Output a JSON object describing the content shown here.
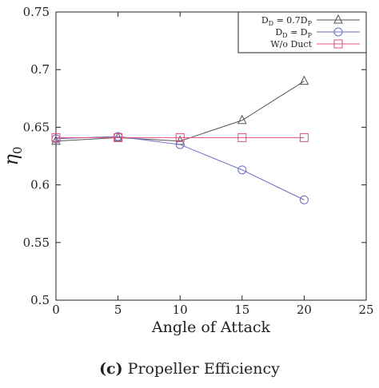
{
  "chart_data": {
    "type": "line",
    "xlabel": "Angle of Attack",
    "ylabel_main": "η",
    "ylabel_sub": "0",
    "xlim": [
      0,
      25
    ],
    "ylim": [
      0.5,
      0.75
    ],
    "xticks": [
      0,
      5,
      10,
      15,
      20,
      25
    ],
    "yticks": [
      0.5,
      0.55,
      0.6,
      0.65,
      0.7,
      0.75
    ],
    "ytick_labels": [
      "0.5",
      "0.55",
      "0.6",
      "0.65",
      "0.7",
      "0.75"
    ],
    "grid": false,
    "legend_position": "top-right",
    "x": [
      0,
      5,
      10,
      15,
      20
    ],
    "series": [
      {
        "legend": {
          "main": "D",
          "sub1": "D",
          "mid": " = 0.7D",
          "sub2": "P"
        },
        "marker": "triangle",
        "color": "#555555",
        "values": [
          0.638,
          0.641,
          0.638,
          0.656,
          0.69
        ]
      },
      {
        "legend": {
          "main": "D",
          "sub1": "D",
          "mid": " = D",
          "sub2": "P"
        },
        "marker": "circle",
        "color": "#6b6bc4",
        "values": [
          0.64,
          0.642,
          0.635,
          0.613,
          0.587
        ]
      },
      {
        "legend": {
          "main": "W/o Duct",
          "sub1": "",
          "mid": "",
          "sub2": ""
        },
        "marker": "square",
        "color": "#e0507a",
        "values": [
          0.641,
          0.641,
          0.641,
          0.641,
          0.641
        ]
      }
    ]
  },
  "caption": {
    "prefix": "(c)",
    "text": " Propeller Efficiency"
  }
}
